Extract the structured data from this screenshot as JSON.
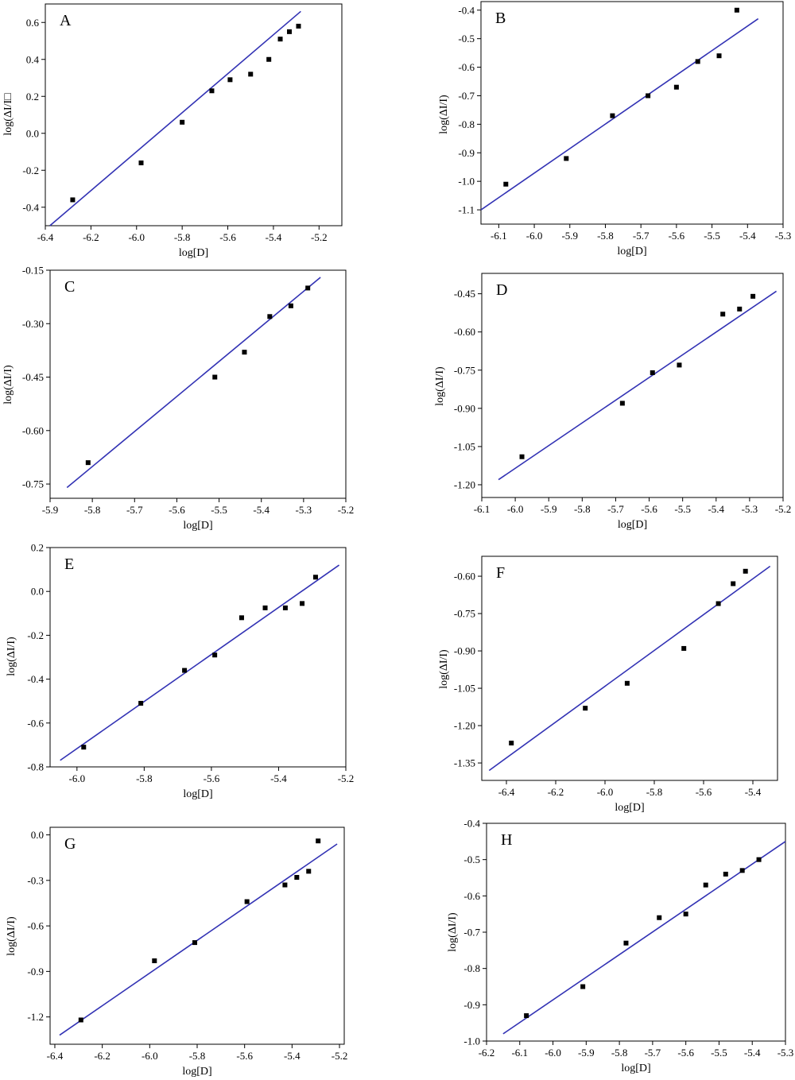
{
  "chart_data": [
    {
      "type": "scatter",
      "panel_label": "A",
      "xlabel": "log[D]",
      "ylabel": "log(ΔI/I□",
      "xlim": [
        -6.4,
        -5.1
      ],
      "ylim": [
        -0.5,
        0.7
      ],
      "xticks": [
        -6.4,
        -6.2,
        -6.0,
        -5.8,
        -5.6,
        -5.4,
        -5.2
      ],
      "xtick_labels": [
        "-6.4",
        "-6.2",
        "-6.0",
        "-5.8",
        "-5.6",
        "-5.4",
        "-5.2"
      ],
      "yticks": [
        -0.4,
        -0.2,
        0.0,
        0.2,
        0.4,
        0.6
      ],
      "ytick_labels": [
        "-0.4",
        "-0.2",
        "0.0",
        "0.2",
        "0.4",
        "0.6"
      ],
      "points": {
        "x": [
          -6.28,
          -5.98,
          -5.8,
          -5.67,
          -5.59,
          -5.5,
          -5.42,
          -5.37,
          -5.33,
          -5.29
        ],
        "y": [
          -0.36,
          -0.16,
          0.06,
          0.23,
          0.29,
          0.32,
          0.4,
          0.51,
          0.55,
          0.58
        ]
      },
      "fit": {
        "x": [
          -6.38,
          -5.28
        ],
        "y": [
          -0.5,
          0.66
        ]
      },
      "line_color": "#3232b4"
    },
    {
      "type": "scatter",
      "panel_label": "B",
      "xlabel": "log[D]",
      "ylabel": "log(ΔI/I)",
      "xlim": [
        -6.15,
        -5.3
      ],
      "ylim": [
        -1.15,
        -0.37
      ],
      "xticks": [
        -6.1,
        -6.0,
        -5.9,
        -5.8,
        -5.7,
        -5.6,
        -5.5,
        -5.4,
        -5.3
      ],
      "xtick_labels": [
        "-6.1",
        "-6.0",
        "-5.9",
        "-5.8",
        "-5.7",
        "-5.6",
        "-5.5",
        "-5.4",
        "-5.3"
      ],
      "yticks": [
        -1.1,
        -1.0,
        -0.9,
        -0.8,
        -0.7,
        -0.6,
        -0.5,
        -0.4
      ],
      "ytick_labels": [
        "-1.1",
        "-1.0",
        "-0.9",
        "-0.8",
        "-0.7",
        "-0.6",
        "-0.5",
        "-0.4"
      ],
      "points": {
        "x": [
          -6.08,
          -5.91,
          -5.78,
          -5.68,
          -5.6,
          -5.54,
          -5.48,
          -5.43
        ],
        "y": [
          -1.01,
          -0.92,
          -0.77,
          -0.7,
          -0.67,
          -0.58,
          -0.56,
          -0.4
        ]
      },
      "fit": {
        "x": [
          -6.15,
          -5.37
        ],
        "y": [
          -1.1,
          -0.43
        ]
      },
      "line_color": "#3232b4"
    },
    {
      "type": "scatter",
      "panel_label": "C",
      "xlabel": "log[D]",
      "ylabel": "log(ΔI/I)",
      "xlim": [
        -5.9,
        -5.2
      ],
      "ylim": [
        -0.79,
        -0.15
      ],
      "xticks": [
        -5.9,
        -5.8,
        -5.7,
        -5.6,
        -5.5,
        -5.4,
        -5.3,
        -5.2
      ],
      "xtick_labels": [
        "-5.9",
        "-5.8",
        "-5.7",
        "-5.6",
        "-5.5",
        "-5.4",
        "-5.3",
        "-5.2"
      ],
      "yticks": [
        -0.75,
        -0.6,
        -0.45,
        -0.3,
        -0.15
      ],
      "ytick_labels": [
        "-0.75",
        "-0.60",
        "-0.45",
        "-0.30",
        "-0.15"
      ],
      "points": {
        "x": [
          -5.81,
          -5.51,
          -5.44,
          -5.38,
          -5.33,
          -5.29
        ],
        "y": [
          -0.69,
          -0.45,
          -0.38,
          -0.28,
          -0.25,
          -0.2
        ]
      },
      "fit": {
        "x": [
          -5.86,
          -5.26
        ],
        "y": [
          -0.76,
          -0.17
        ]
      },
      "line_color": "#3232b4"
    },
    {
      "type": "scatter",
      "panel_label": "D",
      "xlabel": "log[D]",
      "ylabel": "log(ΔI/I)",
      "xlim": [
        -6.1,
        -5.2
      ],
      "ylim": [
        -1.25,
        -0.37
      ],
      "xticks": [
        -6.1,
        -6.0,
        -5.9,
        -5.8,
        -5.7,
        -5.6,
        -5.5,
        -5.4,
        -5.3,
        -5.2
      ],
      "xtick_labels": [
        "-6.1",
        "-6.0",
        "-5.9",
        "-5.8",
        "-5.7",
        "-5.6",
        "-5.5",
        "-5.4",
        "-5.3",
        "-5.2"
      ],
      "yticks": [
        -1.2,
        -1.05,
        -0.9,
        -0.75,
        -0.6,
        -0.45
      ],
      "ytick_labels": [
        "-1.20",
        "-1.05",
        "-0.90",
        "-0.75",
        "-0.60",
        "-0.45"
      ],
      "points": {
        "x": [
          -5.98,
          -5.68,
          -5.59,
          -5.51,
          -5.38,
          -5.33,
          -5.29
        ],
        "y": [
          -1.09,
          -0.88,
          -0.76,
          -0.73,
          -0.53,
          -0.51,
          -0.46
        ]
      },
      "fit": {
        "x": [
          -6.05,
          -5.22
        ],
        "y": [
          -1.18,
          -0.44
        ]
      },
      "line_color": "#3232b4"
    },
    {
      "type": "scatter",
      "panel_label": "E",
      "xlabel": "log[D]",
      "ylabel": "log(ΔI/I)",
      "xlim": [
        -6.08,
        -5.2
      ],
      "ylim": [
        -0.8,
        0.2
      ],
      "xticks": [
        -6.0,
        -5.8,
        -5.6,
        -5.4,
        -5.2
      ],
      "xtick_labels": [
        "-6.0",
        "-5.8",
        "-5.6",
        "-5.4",
        "-5.2"
      ],
      "yticks": [
        -0.8,
        -0.6,
        -0.4,
        -0.2,
        0.0,
        0.2
      ],
      "ytick_labels": [
        "-0.8",
        "-0.6",
        "-0.4",
        "-0.2",
        "0.0",
        "0.2"
      ],
      "points": {
        "x": [
          -5.98,
          -5.81,
          -5.68,
          -5.59,
          -5.51,
          -5.44,
          -5.38,
          -5.33,
          -5.29
        ],
        "y": [
          -0.71,
          -0.51,
          -0.36,
          -0.29,
          -0.12,
          -0.075,
          -0.075,
          -0.055,
          0.065
        ]
      },
      "fit": {
        "x": [
          -6.05,
          -5.22
        ],
        "y": [
          -0.77,
          0.12
        ]
      },
      "line_color": "#3232b4"
    },
    {
      "type": "scatter",
      "panel_label": "F",
      "xlabel": "log[D]",
      "ylabel": "log(ΔI/I)",
      "xlim": [
        -6.5,
        -5.3
      ],
      "ylim": [
        -1.42,
        -0.52
      ],
      "xticks": [
        -6.4,
        -6.2,
        -6.0,
        -5.8,
        -5.6,
        -5.4
      ],
      "xtick_labels": [
        "-6.4",
        "-6.2",
        "-6.0",
        "-5.8",
        "-5.6",
        "-5.4"
      ],
      "yticks": [
        -1.35,
        -1.2,
        -1.05,
        -0.9,
        -0.75,
        -0.6
      ],
      "ytick_labels": [
        "-1.35",
        "-1.20",
        "-1.05",
        "-0.90",
        "-0.75",
        "-0.60"
      ],
      "points": {
        "x": [
          -6.38,
          -6.08,
          -5.91,
          -5.68,
          -5.54,
          -5.48,
          -5.43
        ],
        "y": [
          -1.27,
          -1.13,
          -1.03,
          -0.89,
          -0.71,
          -0.63,
          -0.58
        ]
      },
      "fit": {
        "x": [
          -6.47,
          -5.33
        ],
        "y": [
          -1.38,
          -0.56
        ]
      },
      "line_color": "#3232b4"
    },
    {
      "type": "scatter",
      "panel_label": "G",
      "xlabel": "log[D]",
      "ylabel": "log(ΔI/I)",
      "xlim": [
        -6.42,
        -5.18
      ],
      "ylim": [
        -1.38,
        0.05
      ],
      "xticks": [
        -6.4,
        -6.2,
        -6.0,
        -5.8,
        -5.6,
        -5.4,
        -5.2
      ],
      "xtick_labels": [
        "-6.4",
        "-6.2",
        "-6.0",
        "-5.8",
        "-5.6",
        "-5.4",
        "-5.2"
      ],
      "yticks": [
        -1.2,
        -0.9,
        -0.6,
        -0.3,
        0.0
      ],
      "ytick_labels": [
        "-1.2",
        "-0.9",
        "-0.6",
        "-0.3",
        "0.0"
      ],
      "points": {
        "x": [
          -6.29,
          -5.98,
          -5.81,
          -5.59,
          -5.43,
          -5.38,
          -5.33,
          -5.29
        ],
        "y": [
          -1.22,
          -0.83,
          -0.71,
          -0.44,
          -0.33,
          -0.28,
          -0.24,
          -0.04
        ]
      },
      "fit": {
        "x": [
          -6.38,
          -5.21
        ],
        "y": [
          -1.32,
          -0.06
        ]
      },
      "line_color": "#3232b4"
    },
    {
      "type": "scatter",
      "panel_label": "H",
      "xlabel": "log[D]",
      "ylabel": "log(ΔI/I)",
      "xlim": [
        -6.2,
        -5.3
      ],
      "ylim": [
        -1.0,
        -0.4
      ],
      "xticks": [
        -6.2,
        -6.1,
        -6.0,
        -5.9,
        -5.8,
        -5.7,
        -5.6,
        -5.5,
        -5.4,
        -5.3
      ],
      "xtick_labels": [
        "-6.2",
        "-6.1",
        "-6.0",
        "-5.9",
        "-5.8",
        "-5.7",
        "-5.6",
        "-5.5",
        "-5.4",
        "-5.3"
      ],
      "yticks": [
        -1.0,
        -0.9,
        -0.8,
        -0.7,
        -0.6,
        -0.5,
        -0.4
      ],
      "ytick_labels": [
        "-1.0",
        "-0.9",
        "-0.8",
        "-0.7",
        "-0.6",
        "-0.5",
        "-0.4"
      ],
      "points": {
        "x": [
          -6.08,
          -5.91,
          -5.78,
          -5.68,
          -5.6,
          -5.54,
          -5.48,
          -5.43,
          -5.38
        ],
        "y": [
          -0.93,
          -0.85,
          -0.73,
          -0.66,
          -0.65,
          -0.57,
          -0.54,
          -0.53,
          -0.5
        ]
      },
      "fit": {
        "x": [
          -6.15,
          -5.3
        ],
        "y": [
          -0.98,
          -0.45
        ]
      },
      "line_color": "#3232b4"
    }
  ]
}
